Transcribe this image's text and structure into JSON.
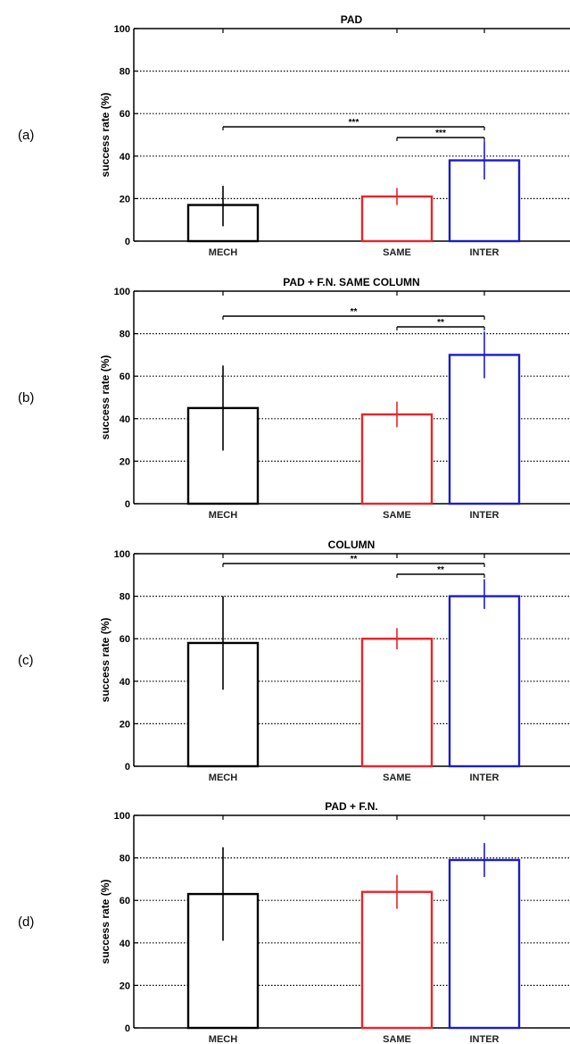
{
  "chart_data": [
    {
      "type": "bar",
      "panel_label": "(a)",
      "title": "PAD",
      "ylabel": "success rate (%)",
      "ylim": [
        0,
        100
      ],
      "yticks": [
        0,
        20,
        40,
        60,
        80,
        100
      ],
      "grid": "horizontal dotted",
      "categories": [
        "MECH",
        "SAME",
        "INTER"
      ],
      "values": [
        17,
        21,
        38
      ],
      "error": [
        [
          7,
          26
        ],
        [
          17,
          25
        ],
        [
          29,
          47
        ]
      ],
      "bar_colors": [
        "#000000",
        "#e8252b",
        "#1c1ccc"
      ],
      "significance": [
        {
          "from": "MECH",
          "to": "INTER",
          "label": "***"
        },
        {
          "from": "SAME",
          "to": "INTER",
          "label": "***"
        }
      ]
    },
    {
      "type": "bar",
      "panel_label": "(b)",
      "title": "PAD + F.N. SAME COLUMN",
      "ylabel": "success rate (%)",
      "ylim": [
        0,
        100
      ],
      "yticks": [
        0,
        20,
        40,
        60,
        80,
        100
      ],
      "grid": "horizontal dotted",
      "categories": [
        "MECH",
        "SAME",
        "INTER"
      ],
      "values": [
        45,
        42,
        70
      ],
      "error": [
        [
          25,
          65
        ],
        [
          36,
          48
        ],
        [
          59,
          81
        ]
      ],
      "bar_colors": [
        "#000000",
        "#e8252b",
        "#1c1ccc"
      ],
      "significance": [
        {
          "from": "MECH",
          "to": "INTER",
          "label": "**"
        },
        {
          "from": "SAME",
          "to": "INTER",
          "label": "**"
        }
      ]
    },
    {
      "type": "bar",
      "panel_label": "(c)",
      "title": "COLUMN",
      "ylabel": "success rate (%)",
      "ylim": [
        0,
        100
      ],
      "yticks": [
        0,
        20,
        40,
        60,
        80,
        100
      ],
      "grid": "horizontal dotted",
      "categories": [
        "MECH",
        "SAME",
        "INTER"
      ],
      "values": [
        58,
        60,
        80
      ],
      "error": [
        [
          36,
          80
        ],
        [
          55,
          65
        ],
        [
          74,
          88
        ]
      ],
      "bar_colors": [
        "#000000",
        "#e8252b",
        "#1c1ccc"
      ],
      "significance": [
        {
          "from": "MECH",
          "to": "INTER",
          "label": "**"
        },
        {
          "from": "SAME",
          "to": "INTER",
          "label": "**"
        }
      ]
    },
    {
      "type": "bar",
      "panel_label": "(d)",
      "title": "PAD + F.N.",
      "ylabel": "success rate (%)",
      "ylim": [
        0,
        100
      ],
      "yticks": [
        0,
        20,
        40,
        60,
        80,
        100
      ],
      "grid": "horizontal dotted",
      "categories": [
        "MECH",
        "SAME",
        "INTER"
      ],
      "values": [
        63,
        64,
        79
      ],
      "error": [
        [
          41,
          85
        ],
        [
          56,
          72
        ],
        [
          71,
          87
        ]
      ],
      "bar_colors": [
        "#000000",
        "#e8252b",
        "#1c1ccc"
      ],
      "significance": []
    }
  ]
}
